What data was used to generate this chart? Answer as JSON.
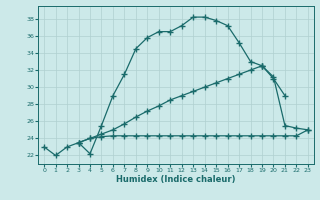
{
  "xlabel": "Humidex (Indice chaleur)",
  "xlim": [
    -0.5,
    23.5
  ],
  "ylim": [
    21.0,
    39.5
  ],
  "xticks": [
    0,
    1,
    2,
    3,
    4,
    5,
    6,
    7,
    8,
    9,
    10,
    11,
    12,
    13,
    14,
    15,
    16,
    17,
    18,
    19,
    20,
    21,
    22,
    23
  ],
  "yticks": [
    22,
    24,
    26,
    28,
    30,
    32,
    34,
    36,
    38
  ],
  "bg_color": "#cce9e9",
  "line_color": "#1a6b6b",
  "grid_color": "#b0d0d0",
  "line1_x": [
    0,
    1,
    2,
    3,
    4,
    5,
    6,
    7,
    8,
    9,
    10,
    11,
    12,
    13,
    14,
    15,
    16,
    17,
    18,
    19
  ],
  "line1_y": [
    23.0,
    22.0,
    23.0,
    23.5,
    22.2,
    25.5,
    29.0,
    31.5,
    34.5,
    35.8,
    36.5,
    36.5,
    37.2,
    38.2,
    38.2,
    37.8,
    37.2,
    35.2,
    33.0,
    32.5
  ],
  "line2_x": [
    19,
    20,
    21
  ],
  "line2_y": [
    32.5,
    31.0,
    29.0
  ],
  "line3_x": [
    3,
    4,
    5,
    6,
    7,
    8,
    9,
    10,
    11,
    12,
    13,
    14,
    15,
    16,
    17,
    18,
    19,
    20,
    21,
    22,
    23
  ],
  "line3_y": [
    23.5,
    24.0,
    24.5,
    25.0,
    25.7,
    26.5,
    27.2,
    27.8,
    28.5,
    29.0,
    29.5,
    30.0,
    30.5,
    31.0,
    31.5,
    32.0,
    32.5,
    31.2,
    25.5,
    25.2,
    25.0
  ],
  "line4_x": [
    3,
    4,
    5,
    6,
    7,
    8,
    9,
    10,
    11,
    12,
    13,
    14,
    15,
    16,
    17,
    18,
    19,
    20,
    21,
    22,
    23
  ],
  "line4_y": [
    23.5,
    24.0,
    24.2,
    24.3,
    24.3,
    24.3,
    24.3,
    24.3,
    24.3,
    24.3,
    24.3,
    24.3,
    24.3,
    24.3,
    24.3,
    24.3,
    24.3,
    24.3,
    24.3,
    24.3,
    25.0
  ]
}
